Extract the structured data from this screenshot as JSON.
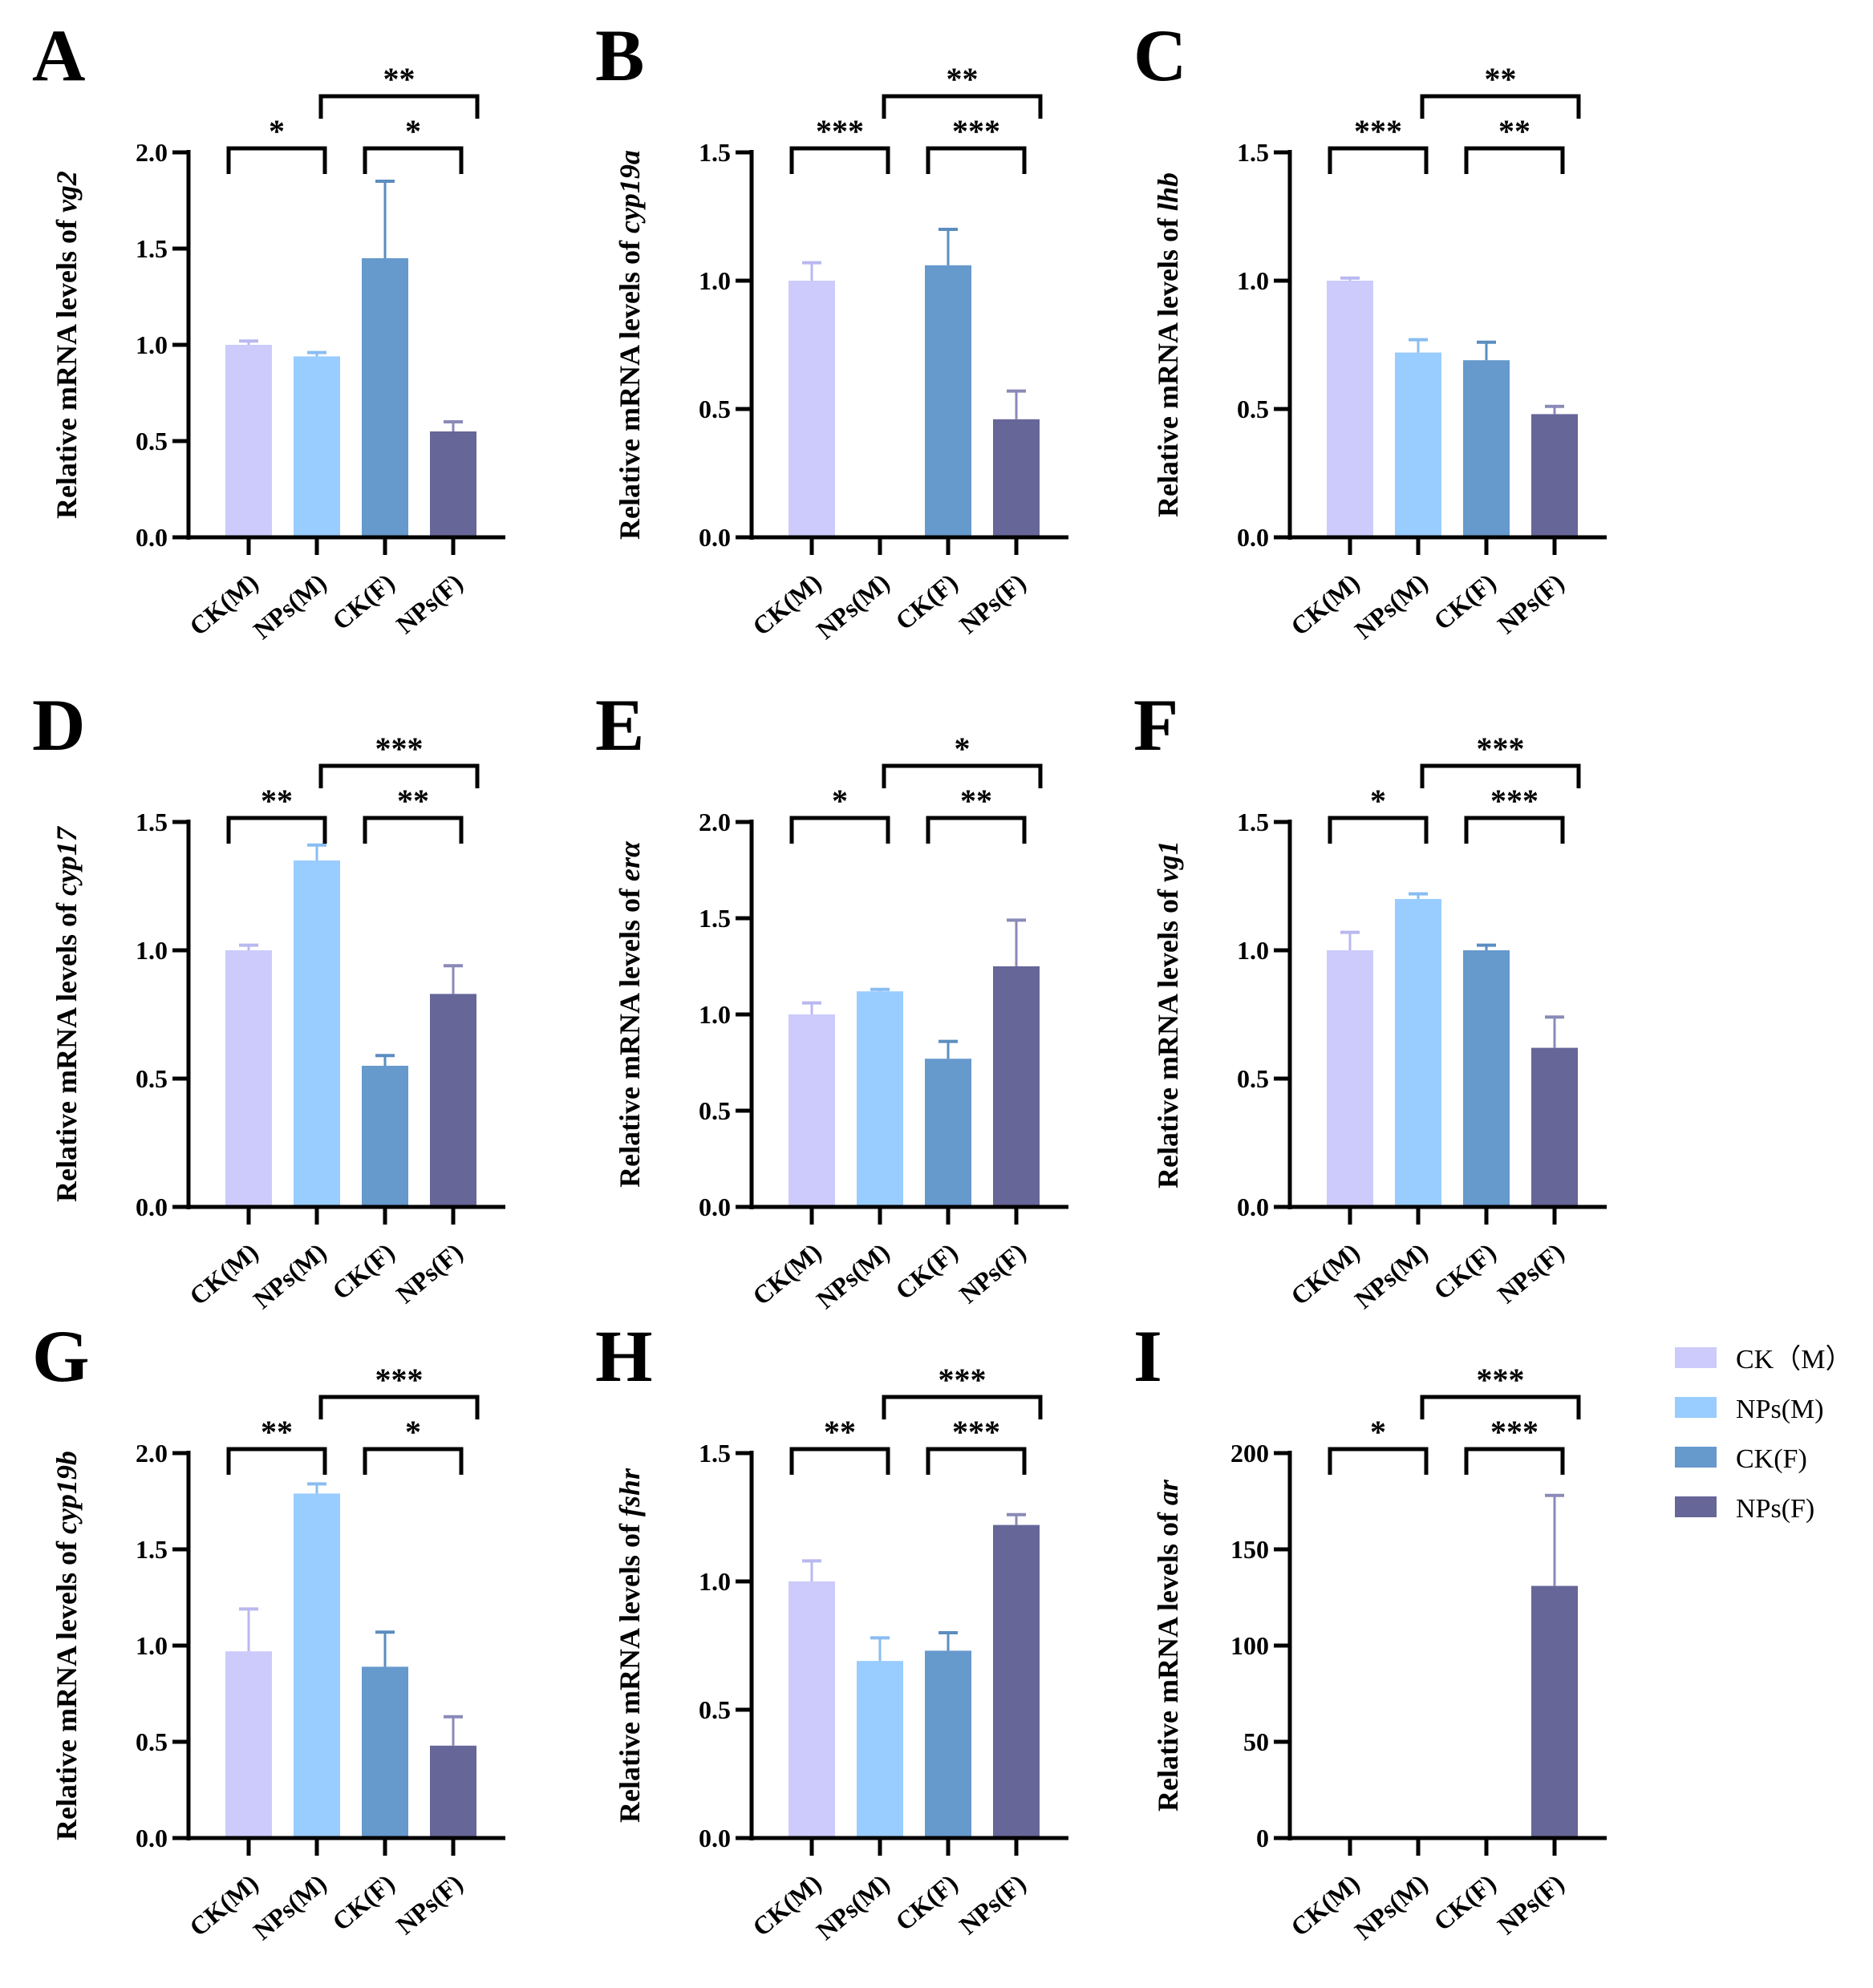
{
  "chart_data": {
    "type": "bar",
    "categories": [
      "CK(M)",
      "NPs(M)",
      "CK(F)",
      "NPs(F)"
    ],
    "colors": [
      "#cccbfb",
      "#99ccff",
      "#6699cc",
      "#666699"
    ],
    "error_colors": [
      "#b9b8f0",
      "#88bdf2",
      "#5b8dc0",
      "#8a8ab8"
    ],
    "legend": {
      "placement": "right",
      "entries": [
        "CK（M）",
        "NPs(M)",
        "CK(F)",
        "NPs(F)"
      ]
    },
    "panels": [
      {
        "letter": "A",
        "ylabel_prefix": "Relative mRNA levels of",
        "gene": "vg2",
        "ylim": [
          0,
          2.0
        ],
        "ticks": [
          "0.0",
          "0.5",
          "1.0",
          "1.5",
          "2.0"
        ],
        "tick_values": [
          0,
          0.5,
          1,
          1.5,
          2
        ],
        "values": [
          1.0,
          0.94,
          1.45,
          0.55
        ],
        "errors": [
          0.02,
          0.02,
          0.4,
          0.05
        ],
        "significance": [
          {
            "from": 0,
            "to": 1,
            "label": "*",
            "level": 0
          },
          {
            "from": 2,
            "to": 3,
            "label": "*",
            "level": 0
          },
          {
            "from": 1,
            "to": 3,
            "label": "**",
            "level": 1
          }
        ]
      },
      {
        "letter": "B",
        "ylabel_prefix": "Relative mRNA levels of",
        "gene": "cyp19a",
        "ylim": [
          0,
          1.5
        ],
        "ticks": [
          "0.0",
          "0.5",
          "1.0",
          "1.5"
        ],
        "tick_values": [
          0,
          0.5,
          1,
          1.5
        ],
        "values": [
          1.0,
          0.0,
          1.06,
          0.46
        ],
        "errors": [
          0.07,
          0.0,
          0.14,
          0.11
        ],
        "significance": [
          {
            "from": 0,
            "to": 1,
            "label": "***",
            "level": 0
          },
          {
            "from": 2,
            "to": 3,
            "label": "***",
            "level": 0
          },
          {
            "from": 1,
            "to": 3,
            "label": "**",
            "level": 1
          }
        ]
      },
      {
        "letter": "C",
        "ylabel_prefix": "Relative mRNA levels of",
        "gene": "lhb",
        "ylim": [
          0,
          1.5
        ],
        "ticks": [
          "0.0",
          "0.5",
          "1.0",
          "1.5"
        ],
        "tick_values": [
          0,
          0.5,
          1,
          1.5
        ],
        "values": [
          1.0,
          0.72,
          0.69,
          0.48
        ],
        "errors": [
          0.01,
          0.05,
          0.07,
          0.03
        ],
        "significance": [
          {
            "from": 0,
            "to": 1,
            "label": "***",
            "level": 0
          },
          {
            "from": 2,
            "to": 3,
            "label": "**",
            "level": 0
          },
          {
            "from": 1,
            "to": 3,
            "label": "**",
            "level": 1
          }
        ]
      },
      {
        "letter": "D",
        "ylabel_prefix": "Relative mRNA levels of",
        "gene": "cyp17",
        "ylim": [
          0,
          1.5
        ],
        "ticks": [
          "0.0",
          "0.5",
          "1.0",
          "1.5"
        ],
        "tick_values": [
          0,
          0.5,
          1,
          1.5
        ],
        "values": [
          1.0,
          1.35,
          0.55,
          0.83
        ],
        "errors": [
          0.02,
          0.06,
          0.04,
          0.11
        ],
        "significance": [
          {
            "from": 0,
            "to": 1,
            "label": "**",
            "level": 0
          },
          {
            "from": 2,
            "to": 3,
            "label": "**",
            "level": 0
          },
          {
            "from": 1,
            "to": 3,
            "label": "***",
            "level": 1
          }
        ]
      },
      {
        "letter": "E",
        "ylabel_prefix": "Relative mRNA levels of",
        "gene": "erα",
        "ylim": [
          0,
          2.0
        ],
        "ticks": [
          "0.0",
          "0.5",
          "1.0",
          "1.5",
          "2.0"
        ],
        "tick_values": [
          0,
          0.5,
          1,
          1.5,
          2
        ],
        "values": [
          1.0,
          1.12,
          0.77,
          1.25
        ],
        "errors": [
          0.06,
          0.01,
          0.09,
          0.24
        ],
        "significance": [
          {
            "from": 0,
            "to": 1,
            "label": "*",
            "level": 0
          },
          {
            "from": 2,
            "to": 3,
            "label": "**",
            "level": 0
          },
          {
            "from": 1,
            "to": 3,
            "label": "*",
            "level": 1
          }
        ]
      },
      {
        "letter": "F",
        "ylabel_prefix": "Relative mRNA levels of",
        "gene": "vg1",
        "ylim": [
          0,
          1.5
        ],
        "ticks": [
          "0.0",
          "0.5",
          "1.0",
          "1.5"
        ],
        "tick_values": [
          0,
          0.5,
          1,
          1.5
        ],
        "values": [
          1.0,
          1.2,
          1.0,
          0.62
        ],
        "errors": [
          0.07,
          0.02,
          0.02,
          0.12
        ],
        "significance": [
          {
            "from": 0,
            "to": 1,
            "label": "*",
            "level": 0
          },
          {
            "from": 2,
            "to": 3,
            "label": "***",
            "level": 0
          },
          {
            "from": 1,
            "to": 3,
            "label": "***",
            "level": 1
          }
        ]
      },
      {
        "letter": "G",
        "ylabel_prefix": "Relative mRNA levels of",
        "gene": "cyp19b",
        "ylim": [
          0,
          2.0
        ],
        "ticks": [
          "0.0",
          "0.5",
          "1.0",
          "1.5",
          "2.0"
        ],
        "tick_values": [
          0,
          0.5,
          1,
          1.5,
          2
        ],
        "values": [
          0.97,
          1.79,
          0.89,
          0.48
        ],
        "errors": [
          0.22,
          0.05,
          0.18,
          0.15
        ],
        "significance": [
          {
            "from": 0,
            "to": 1,
            "label": "**",
            "level": 0
          },
          {
            "from": 2,
            "to": 3,
            "label": "*",
            "level": 0
          },
          {
            "from": 1,
            "to": 3,
            "label": "***",
            "level": 1
          }
        ]
      },
      {
        "letter": "H",
        "ylabel_prefix": "Relative mRNA levels of",
        "gene": "fshr",
        "ylim": [
          0,
          1.5
        ],
        "ticks": [
          "0.0",
          "0.5",
          "1.0",
          "1.5"
        ],
        "tick_values": [
          0,
          0.5,
          1,
          1.5
        ],
        "values": [
          1.0,
          0.69,
          0.73,
          1.22
        ],
        "errors": [
          0.08,
          0.09,
          0.07,
          0.04
        ],
        "significance": [
          {
            "from": 0,
            "to": 1,
            "label": "**",
            "level": 0
          },
          {
            "from": 2,
            "to": 3,
            "label": "***",
            "level": 0
          },
          {
            "from": 1,
            "to": 3,
            "label": "***",
            "level": 1
          }
        ]
      },
      {
        "letter": "I",
        "ylabel_prefix": "Relative mRNA levels of",
        "gene": "ar",
        "ylim": [
          0,
          200
        ],
        "ticks": [
          "0",
          "50",
          "100",
          "150",
          "200"
        ],
        "tick_values": [
          0,
          50,
          100,
          150,
          200
        ],
        "values": [
          1,
          1,
          1,
          131
        ],
        "errors": [
          0,
          0,
          0,
          47
        ],
        "significance": [
          {
            "from": 0,
            "to": 1,
            "label": "*",
            "level": 0
          },
          {
            "from": 2,
            "to": 3,
            "label": "***",
            "level": 0
          },
          {
            "from": 1,
            "to": 3,
            "label": "***",
            "level": 1
          }
        ]
      }
    ]
  }
}
